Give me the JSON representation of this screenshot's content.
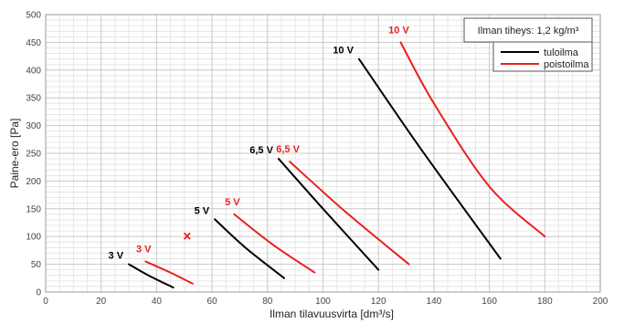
{
  "chart_data": {
    "type": "line",
    "xlabel": "Ilman tilavuusvirta [dm³/s]",
    "ylabel": "Paine-ero [Pa]",
    "xlim": [
      0,
      200
    ],
    "ylim": [
      0,
      500
    ],
    "x_ticks": [
      "0",
      "20",
      "40",
      "60",
      "80",
      "100",
      "120",
      "140",
      "160",
      "180",
      "200"
    ],
    "y_ticks": [
      "0",
      "50",
      "100",
      "150",
      "200",
      "250",
      "300",
      "350",
      "400",
      "450",
      "500"
    ],
    "grid": true,
    "density_note": "Ilman tiheys: 1,2 kg/m³",
    "legend": {
      "placement": "top-right",
      "entries": [
        {
          "label": "tuloilma",
          "color": "#000000"
        },
        {
          "label": "poistoilma",
          "color": "#e8221b"
        }
      ]
    },
    "colors": {
      "tuloilma": "#000000",
      "poistoilma": "#e8221b"
    },
    "series": [
      {
        "kind": "tuloilma",
        "label": "3 V",
        "points": [
          [
            30,
            50
          ],
          [
            37,
            30
          ],
          [
            46,
            8
          ]
        ]
      },
      {
        "kind": "tuloilma",
        "label": "5 V",
        "points": [
          [
            61,
            131
          ],
          [
            72,
            80
          ],
          [
            86,
            25
          ]
        ]
      },
      {
        "kind": "tuloilma",
        "label": "6,5 V",
        "points": [
          [
            84,
            240
          ],
          [
            100,
            150
          ],
          [
            120,
            40
          ]
        ]
      },
      {
        "kind": "tuloilma",
        "label": "10 V",
        "points": [
          [
            113,
            420
          ],
          [
            135,
            260
          ],
          [
            164,
            60
          ]
        ]
      },
      {
        "kind": "poistoilma",
        "label": "3 V",
        "points": [
          [
            36,
            55
          ],
          [
            45,
            35
          ],
          [
            53,
            15
          ]
        ]
      },
      {
        "kind": "poistoilma",
        "label": "5 V",
        "points": [
          [
            68,
            140
          ],
          [
            82,
            85
          ],
          [
            97,
            35
          ]
        ]
      },
      {
        "kind": "poistoilma",
        "label": "6,5 V",
        "points": [
          [
            88,
            235
          ],
          [
            108,
            145
          ],
          [
            131,
            50
          ]
        ]
      },
      {
        "kind": "poistoilma",
        "label": "10 V",
        "points": [
          [
            128,
            450
          ],
          [
            140,
            340
          ],
          [
            160,
            190
          ],
          [
            180,
            100
          ]
        ]
      }
    ],
    "annotations": [
      {
        "text": "×",
        "x": 51,
        "y": 100,
        "color": "#e8221b"
      }
    ]
  }
}
